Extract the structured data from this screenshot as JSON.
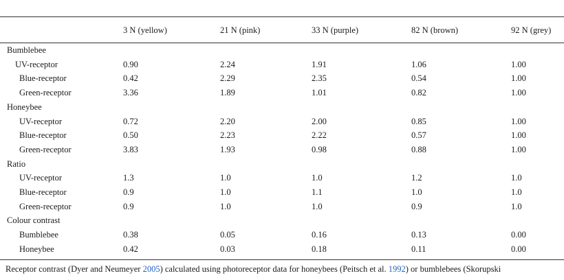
{
  "table": {
    "columns": [
      "3 N (yellow)",
      "21 N (pink)",
      "33 N (purple)",
      "82 N (brown)",
      "92 N (grey)"
    ],
    "groups": [
      {
        "label": "Bumblebee",
        "rows": [
          {
            "label": "UV-receptor",
            "values": [
              "0.90",
              "2.24",
              "1.91",
              "1.06",
              "1.00"
            ]
          },
          {
            "label": "Blue-receptor",
            "values": [
              "0.42",
              "2.29",
              "2.35",
              "0.54",
              "1.00"
            ]
          },
          {
            "label": "Green-receptor",
            "values": [
              "3.36",
              "1.89",
              "1.01",
              "0.82",
              "1.00"
            ]
          }
        ]
      },
      {
        "label": "Honeybee",
        "rows": [
          {
            "label": "UV-receptor",
            "values": [
              "0.72",
              "2.20",
              "2.00",
              "0.85",
              "1.00"
            ]
          },
          {
            "label": "Blue-receptor",
            "values": [
              "0.50",
              "2.23",
              "2.22",
              "0.57",
              "1.00"
            ]
          },
          {
            "label": "Green-receptor",
            "values": [
              "3.83",
              "1.93",
              "0.98",
              "0.88",
              "1.00"
            ]
          }
        ]
      },
      {
        "label": "Ratio",
        "rows": [
          {
            "label": "UV-receptor",
            "values": [
              "1.3",
              "1.0",
              "1.0",
              "1.2",
              "1.0"
            ]
          },
          {
            "label": "Blue-receptor",
            "values": [
              "0.9",
              "1.0",
              "1.1",
              "1.0",
              "1.0"
            ]
          },
          {
            "label": "Green-receptor",
            "values": [
              "0.9",
              "1.0",
              "1.0",
              "0.9",
              "1.0"
            ]
          }
        ]
      },
      {
        "label": "Colour contrast",
        "rows": [
          {
            "label": "Bumblebee",
            "values": [
              "0.38",
              "0.05",
              "0.16",
              "0.13",
              "0.00"
            ]
          },
          {
            "label": "Honeybee",
            "values": [
              "0.42",
              "0.03",
              "0.18",
              "0.11",
              "0.00"
            ]
          }
        ]
      }
    ]
  },
  "caption": {
    "part1": "Receptor contrast (Dyer and Neumeyer ",
    "ref1": "2005",
    "part2": ") calculated using photoreceptor data for honeybees (Peitsch et al. ",
    "ref2": "1992",
    "part3": ") or bumblebees (Skorupski"
  },
  "colors": {
    "link": "#1f5fbf",
    "rule": "#333333"
  }
}
